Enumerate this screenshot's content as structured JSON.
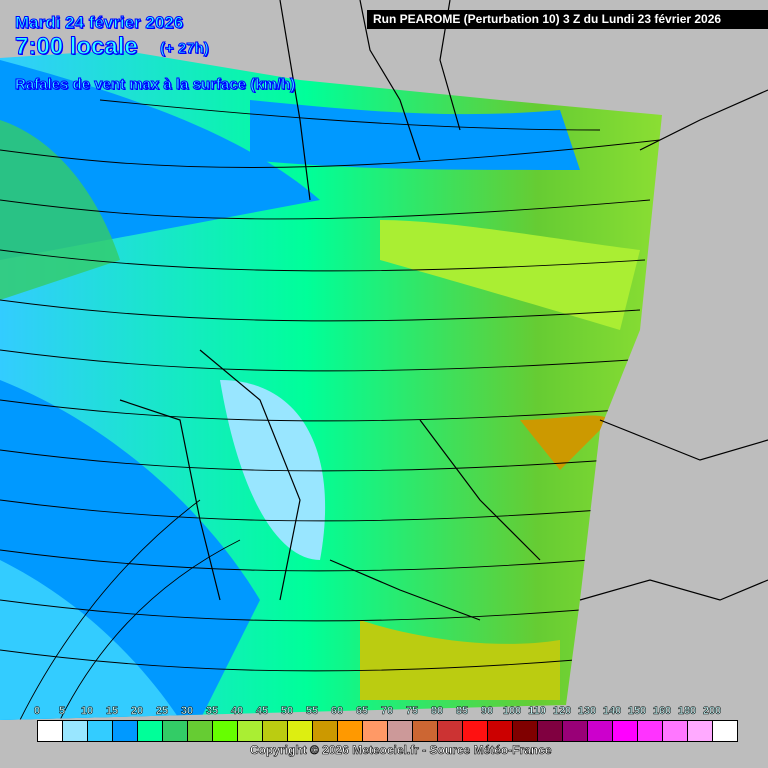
{
  "header": {
    "date": "Mardi 24 février 2026",
    "hour": "7:00 locale",
    "lead": "(+ 27h)",
    "parameter": "Rafales de vent max à la surface (km/h)",
    "run": "Run PEAROME (Perturbation 10) 3 Z du Lundi 23 février 2026"
  },
  "legend": {
    "labels": [
      "0",
      "5",
      "10",
      "15",
      "20",
      "25",
      "30",
      "35",
      "40",
      "45",
      "50",
      "55",
      "60",
      "65",
      "70",
      "75",
      "80",
      "85",
      "90",
      "100",
      "110",
      "120",
      "130",
      "140",
      "150",
      "160",
      "180",
      "200"
    ],
    "colors": [
      "#ffffff",
      "#99e6ff",
      "#33ccff",
      "#0099ff",
      "#00ff99",
      "#33cc66",
      "#66cc33",
      "#66ff00",
      "#aaee33",
      "#bbcc11",
      "#ddee11",
      "#cc9900",
      "#ff9900",
      "#ff9966",
      "#cc9999",
      "#cc6633",
      "#cc3333",
      "#ff1111",
      "#cc0000",
      "#800000",
      "#800040",
      "#990077",
      "#cc00cc",
      "#ff00ff",
      "#ff33ff",
      "#ff77ff",
      "#ffaaff",
      "#ffffff"
    ]
  },
  "footer": {
    "copyright": "Copyright © 2026 Meteociel.fr - Source Météo-France"
  }
}
